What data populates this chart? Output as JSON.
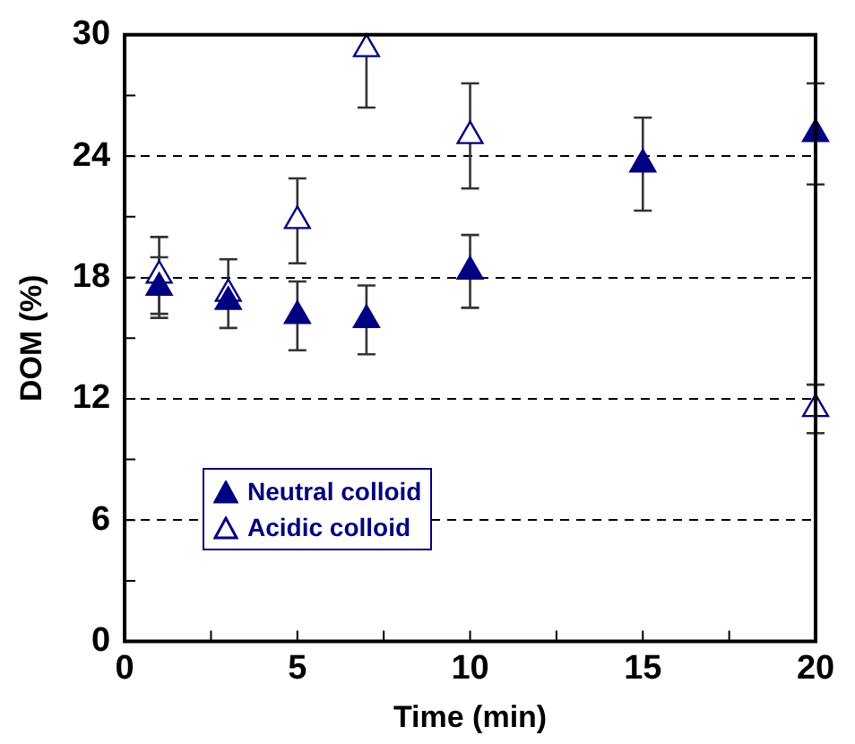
{
  "chart_data": {
    "type": "scatter",
    "xlabel": "Time (min)",
    "ylabel": "DOM (%)",
    "xlim": [
      0,
      20
    ],
    "xticks": [
      0,
      {
        "value": 2.5,
        "label": null
      },
      5,
      {
        "value": 7.5,
        "label": null
      },
      10,
      {
        "value": 12.5,
        "label": null
      },
      15,
      {
        "value": 17.5,
        "label": null
      },
      20
    ],
    "ylim": [
      0,
      30
    ],
    "yticks": [
      0,
      {
        "value": 3,
        "label": null
      },
      6,
      {
        "value": 9,
        "label": null
      },
      12,
      {
        "value": 15,
        "label": null
      },
      18,
      {
        "value": 21,
        "label": null
      },
      24,
      {
        "value": 27,
        "label": null
      },
      30
    ],
    "grid": "y",
    "legend": "bottom left",
    "marker": "triangle",
    "series": [
      {
        "name": "Neutral colloid",
        "color": "#000080",
        "x": [
          1,
          3,
          5,
          7,
          10,
          15,
          20
        ],
        "values": [
          17.5,
          16.8,
          16.1,
          15.9,
          18.3,
          23.6,
          25.1
        ],
        "errors": [
          1.5,
          null,
          1.7,
          1.7,
          1.8,
          2.3,
          2.5
        ]
      },
      {
        "name": "Acidic colloid",
        "color": "#000080",
        "x": [
          1,
          3,
          5,
          7,
          10,
          20
        ],
        "values": [
          18.1,
          17.2,
          20.8,
          29.3,
          25.0,
          11.5
        ],
        "errors": [
          1.9,
          1.7,
          2.1,
          [
            26.4,
            30
          ],
          2.6,
          1.2
        ]
      }
    ]
  }
}
